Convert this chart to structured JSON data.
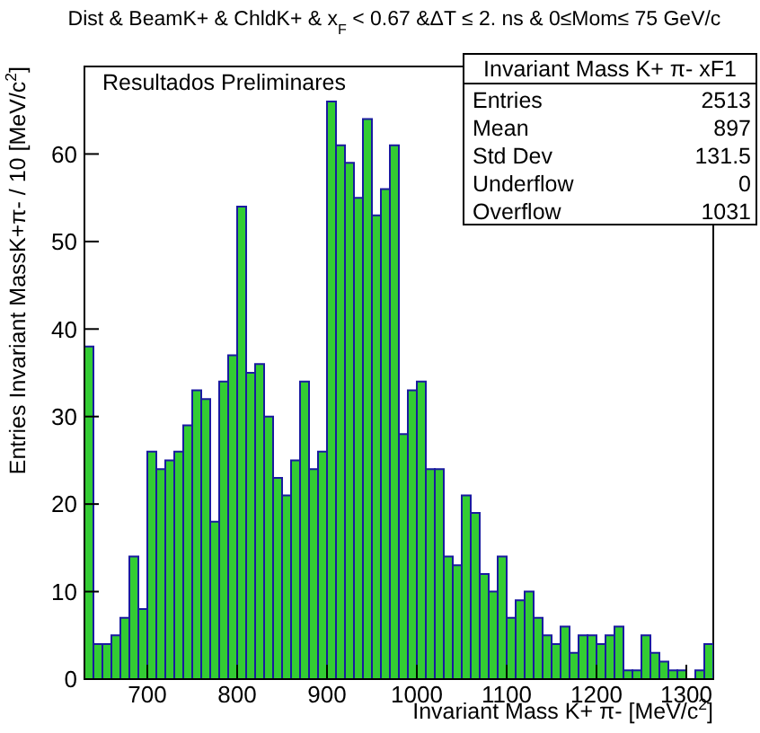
{
  "chart_data": {
    "type": "histogram",
    "title": "Dist & BeamK+ & ChldK+ & x$_{F}$ < 0.67 &ΔT ≤ 2. ns & 0≤Mom≤ 75 GeV/c",
    "xlabel": "Invariant Mass K+ π- [MeV/c$^{2}$]",
    "ylabel": "Entries Invariant MassK+π- / 10 [MeV/c$^{2}$]",
    "bins": [
      630,
      640,
      650,
      660,
      670,
      680,
      690,
      700,
      710,
      720,
      730,
      740,
      750,
      760,
      770,
      780,
      790,
      800,
      810,
      820,
      830,
      840,
      850,
      860,
      870,
      880,
      890,
      900,
      910,
      920,
      930,
      940,
      950,
      960,
      970,
      980,
      990,
      1000,
      1010,
      1020,
      1030,
      1040,
      1050,
      1060,
      1070,
      1080,
      1090,
      1100,
      1110,
      1120,
      1130,
      1140,
      1150,
      1160,
      1170,
      1180,
      1190,
      1200,
      1210,
      1220,
      1230,
      1240,
      1250,
      1260,
      1270,
      1280,
      1290,
      1300,
      1310,
      1320,
      1330
    ],
    "values": [
      38,
      4,
      4,
      5,
      7,
      14,
      8,
      26,
      24,
      25,
      26,
      29,
      33,
      32,
      18,
      34,
      37,
      54,
      35,
      36,
      30,
      23,
      21,
      25,
      34,
      24,
      26,
      66,
      61,
      59,
      55,
      64,
      53,
      56,
      61,
      28,
      33,
      34,
      24,
      24,
      14,
      13,
      21,
      19,
      12,
      10,
      14,
      7,
      9,
      10,
      7,
      5,
      4,
      6,
      3,
      5,
      5,
      4,
      5,
      6,
      1,
      1,
      5,
      3,
      2,
      1,
      1,
      0,
      1,
      4
    ],
    "color": "#33cc33",
    "xlim": [
      630,
      1330
    ],
    "xticks": [
      700,
      800,
      900,
      1000,
      1100,
      1200,
      1300
    ],
    "ylim": [
      0,
      70
    ],
    "yticks": [
      0,
      10,
      20,
      30,
      40,
      50,
      60
    ],
    "grid": false,
    "legend": false,
    "annotations": [
      "Resultados Preliminares",
      "Invariant Mass K+ π- xF1",
      "Entries",
      "2513",
      "Mean",
      "897",
      "Std Dev",
      "131.5",
      "Underflow",
      "0",
      "Overflow",
      "1031"
    ]
  }
}
